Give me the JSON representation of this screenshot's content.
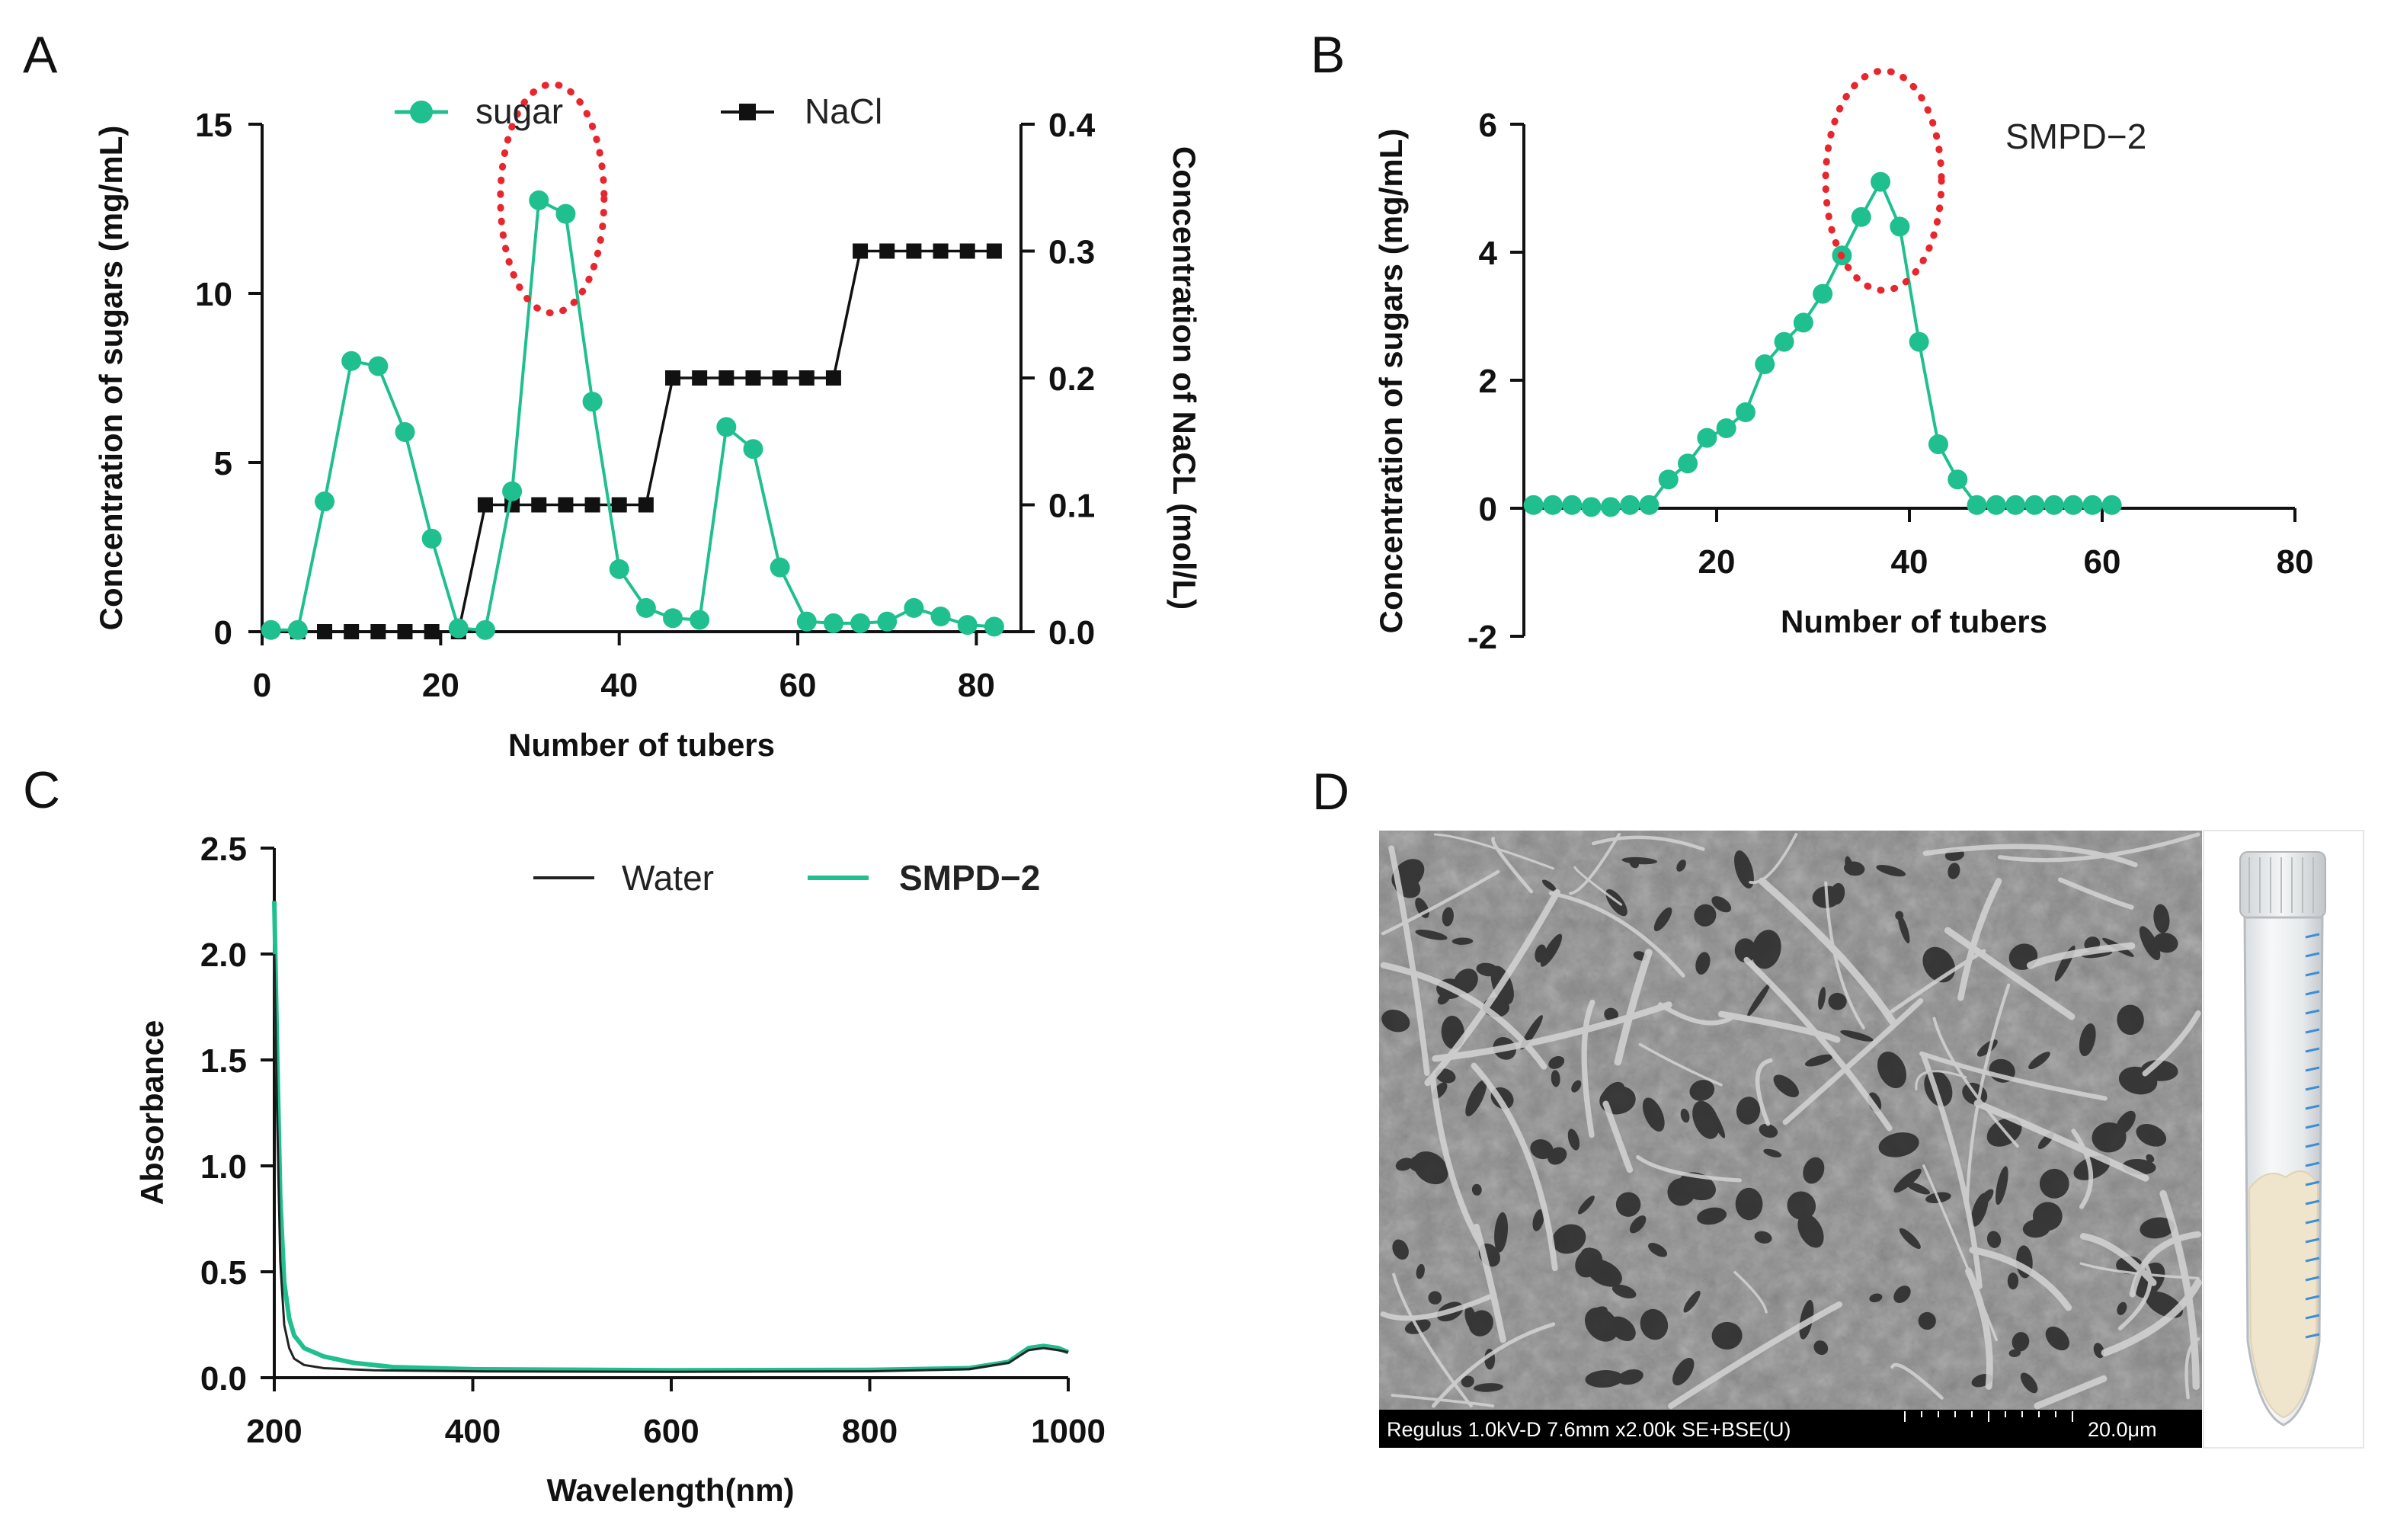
{
  "panels": {
    "A": "A",
    "B": "B",
    "C": "C",
    "D": "D"
  },
  "colors": {
    "sugar": "#1fbf8f",
    "nacl": "#111111",
    "water": "#222222",
    "smpd": "#1fbf8f",
    "ellipse": "#e8262d"
  },
  "chart_data": [
    {
      "id": "A",
      "type": "line",
      "xlabel": "Number of tubers",
      "ylabel": "Concentration of sugars (mg/mL)",
      "y2label": "Concentration of  NaCL (mol/L)",
      "xlim": [
        0,
        85
      ],
      "ylim": [
        0,
        15
      ],
      "y2lim": [
        0,
        0.4
      ],
      "xticks": [
        "0",
        "20",
        "40",
        "60",
        "80"
      ],
      "yticks": [
        "0",
        "5",
        "10",
        "15"
      ],
      "y2ticks": [
        "0.0",
        "0.1",
        "0.2",
        "0.3",
        "0.4"
      ],
      "legend": {
        "sugar": "sugar",
        "nacl": "NaCl"
      },
      "series": [
        {
          "name": "sugar",
          "axis": "left",
          "marker": "circle",
          "x": [
            1,
            4,
            7,
            10,
            13,
            16,
            19,
            22,
            25,
            28,
            31,
            34,
            37,
            40,
            43,
            46,
            49,
            52,
            55,
            58,
            61,
            64,
            67,
            70,
            73,
            76,
            79,
            82
          ],
          "y": [
            0.05,
            0.05,
            3.85,
            8.0,
            7.85,
            5.9,
            2.75,
            0.1,
            0.05,
            4.15,
            12.75,
            12.35,
            6.8,
            1.85,
            0.7,
            0.4,
            0.35,
            6.05,
            5.4,
            1.9,
            0.3,
            0.25,
            0.25,
            0.3,
            0.7,
            0.45,
            0.2,
            0.15
          ]
        },
        {
          "name": "NaCl",
          "axis": "right",
          "marker": "square",
          "x": [
            4,
            7,
            10,
            13,
            16,
            19,
            22,
            25,
            28,
            31,
            34,
            37,
            40,
            43,
            46,
            49,
            52,
            55,
            58,
            61,
            64,
            67,
            70,
            73,
            76,
            79,
            82
          ],
          "y": [
            0,
            0,
            0,
            0,
            0,
            0,
            0,
            0.1,
            0.1,
            0.1,
            0.1,
            0.1,
            0.1,
            0.1,
            0.2,
            0.2,
            0.2,
            0.2,
            0.2,
            0.2,
            0.2,
            0.3,
            0.3,
            0.3,
            0.3,
            0.3,
            0.3
          ]
        }
      ],
      "highlight": {
        "x_center": 32.5,
        "y_center": 12.8,
        "note": "dotted red ellipse around main peak"
      }
    },
    {
      "id": "B",
      "type": "line",
      "annotation": "SMPD−2",
      "xlabel": "Number of tubers",
      "ylabel": "Concentration of sugars (mg/mL)",
      "xlim": [
        0,
        80
      ],
      "ylim": [
        -2,
        6
      ],
      "xticks": [
        "20",
        "40",
        "60",
        "80"
      ],
      "yticks": [
        "-2",
        "0",
        "2",
        "4",
        "6"
      ],
      "series": [
        {
          "name": "SMPD-2",
          "marker": "circle",
          "x": [
            1,
            3,
            5,
            7,
            9,
            11,
            13,
            15,
            17,
            19,
            21,
            23,
            25,
            27,
            29,
            31,
            33,
            35,
            37,
            39,
            41,
            43,
            45,
            47,
            49,
            51,
            53,
            55,
            57,
            59,
            61
          ],
          "y": [
            0.05,
            0.05,
            0.05,
            0.02,
            0.02,
            0.05,
            0.05,
            0.45,
            0.7,
            1.1,
            1.25,
            1.5,
            2.25,
            2.6,
            2.9,
            3.35,
            3.95,
            4.55,
            5.1,
            4.4,
            2.6,
            1.0,
            0.45,
            0.05,
            0.05,
            0.05,
            0.05,
            0.05,
            0.05,
            0.05,
            0.05
          ]
        }
      ],
      "highlight": {
        "x_center": 37,
        "y_center": 5.0,
        "note": "dotted red ellipse around peak"
      }
    },
    {
      "id": "C",
      "type": "line",
      "xlabel": "Wavelength(nm)",
      "ylabel": "Absorbance",
      "xlim": [
        200,
        1000
      ],
      "ylim": [
        0,
        2.5
      ],
      "xticks": [
        "200",
        "400",
        "600",
        "800",
        "1000"
      ],
      "yticks": [
        "0.0",
        "0.5",
        "1.0",
        "1.5",
        "2.0",
        "2.5"
      ],
      "legend": {
        "water": "Water",
        "smpd": "SMPD−2"
      },
      "series": [
        {
          "name": "Water",
          "x": [
            200,
            203,
            206,
            210,
            215,
            220,
            230,
            250,
            300,
            400,
            600,
            800,
            900,
            940,
            960,
            975,
            990,
            1000
          ],
          "y": [
            2.0,
            1.2,
            0.55,
            0.25,
            0.14,
            0.09,
            0.06,
            0.045,
            0.035,
            0.03,
            0.028,
            0.03,
            0.04,
            0.07,
            0.13,
            0.14,
            0.13,
            0.12
          ]
        },
        {
          "name": "SMPD-2",
          "x": [
            200,
            203,
            206,
            210,
            215,
            220,
            230,
            250,
            280,
            320,
            400,
            600,
            800,
            900,
            940,
            960,
            975,
            990,
            1000
          ],
          "y": [
            2.25,
            1.5,
            0.85,
            0.45,
            0.28,
            0.2,
            0.14,
            0.1,
            0.07,
            0.05,
            0.04,
            0.035,
            0.037,
            0.045,
            0.075,
            0.14,
            0.15,
            0.14,
            0.12
          ]
        }
      ]
    }
  ],
  "panel_d": {
    "sem_caption": "Regulus 1.0kV-D 7.6mm x2.00k SE+BSE(U)",
    "scale_label": "20.0μm"
  }
}
